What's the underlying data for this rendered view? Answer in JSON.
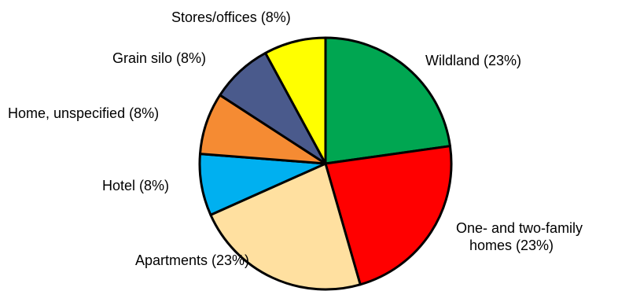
{
  "chart_data": {
    "type": "pie",
    "title": "",
    "start_angle_deg": 0,
    "direction": "clockwise",
    "slices": [
      {
        "label": "Wildland (23%)",
        "value": 23,
        "color": "#00A651"
      },
      {
        "label": "One- and two-family homes (23%)",
        "label_lines": [
          "One- and two-family",
          "homes (23%)"
        ],
        "value": 23,
        "color": "#FF0000"
      },
      {
        "label": "Apartments (23%)",
        "value": 23,
        "color": "#FFE0A0"
      },
      {
        "label": "Hotel (8%)",
        "value": 8,
        "color": "#00B0F0"
      },
      {
        "label": "Home, unspecified (8%)",
        "value": 8,
        "color": "#F58B33"
      },
      {
        "label": "Grain silo (8%)",
        "value": 8,
        "color": "#4A5A8C"
      },
      {
        "label": "Stores/offices (8%)",
        "value": 8,
        "color": "#FFFF00"
      }
    ]
  }
}
